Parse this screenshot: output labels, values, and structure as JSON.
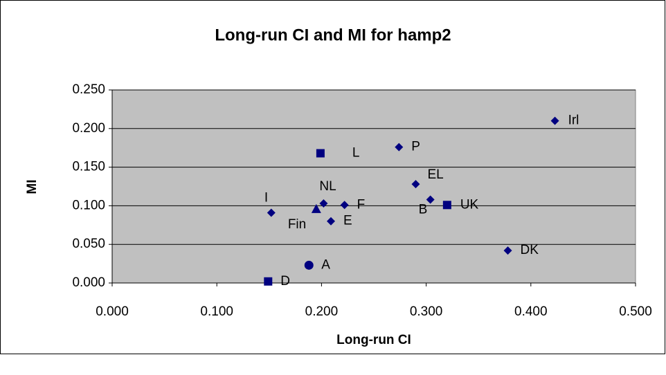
{
  "chart_data": {
    "type": "scatter",
    "title": "Long-run CI and MI for hamp2",
    "x_label": "Long-run CI",
    "y_label": "MI",
    "color": "#000080",
    "plot_background": "#c0c0c0",
    "grid": true,
    "xlim": [
      0,
      0.5
    ],
    "ylim": [
      0,
      0.25
    ],
    "xticks": [
      {
        "value": 0,
        "label": "0.000"
      },
      {
        "value": 0.1,
        "label": "0.100"
      },
      {
        "value": 0.2,
        "label": "0.200"
      },
      {
        "value": 0.3,
        "label": "0.300"
      },
      {
        "value": 0.4,
        "label": "0.400"
      },
      {
        "value": 0.5,
        "label": "0.500"
      }
    ],
    "yticks": [
      {
        "value": 0,
        "label": "0.000"
      },
      {
        "value": 0.05,
        "label": "0.050"
      },
      {
        "value": 0.1,
        "label": "0.100"
      },
      {
        "value": 0.15,
        "label": "0.150"
      },
      {
        "value": 0.2,
        "label": "0.200"
      },
      {
        "value": 0.25,
        "label": "0.250"
      }
    ],
    "labels": [
      "Irl",
      "P",
      "L",
      "EL",
      "B",
      "UK",
      "NL",
      "F",
      "E",
      "Fin",
      "I",
      "A",
      "D",
      "DK"
    ],
    "markers": [
      "diamond",
      "diamond",
      "square",
      "diamond",
      "diamond",
      "square",
      "diamond",
      "diamond",
      "diamond",
      "triangle",
      "diamond",
      "circle",
      "square",
      "diamond"
    ],
    "x": [
      0.423,
      0.274,
      0.199,
      0.29,
      0.304,
      0.32,
      0.202,
      0.222,
      0.209,
      0.195,
      0.152,
      0.188,
      0.149,
      0.378
    ],
    "y": [
      0.21,
      0.176,
      0.168,
      0.128,
      0.108,
      0.101,
      0.103,
      0.101,
      0.08,
      0.096,
      0.091,
      0.023,
      0.002,
      0.042
    ]
  }
}
